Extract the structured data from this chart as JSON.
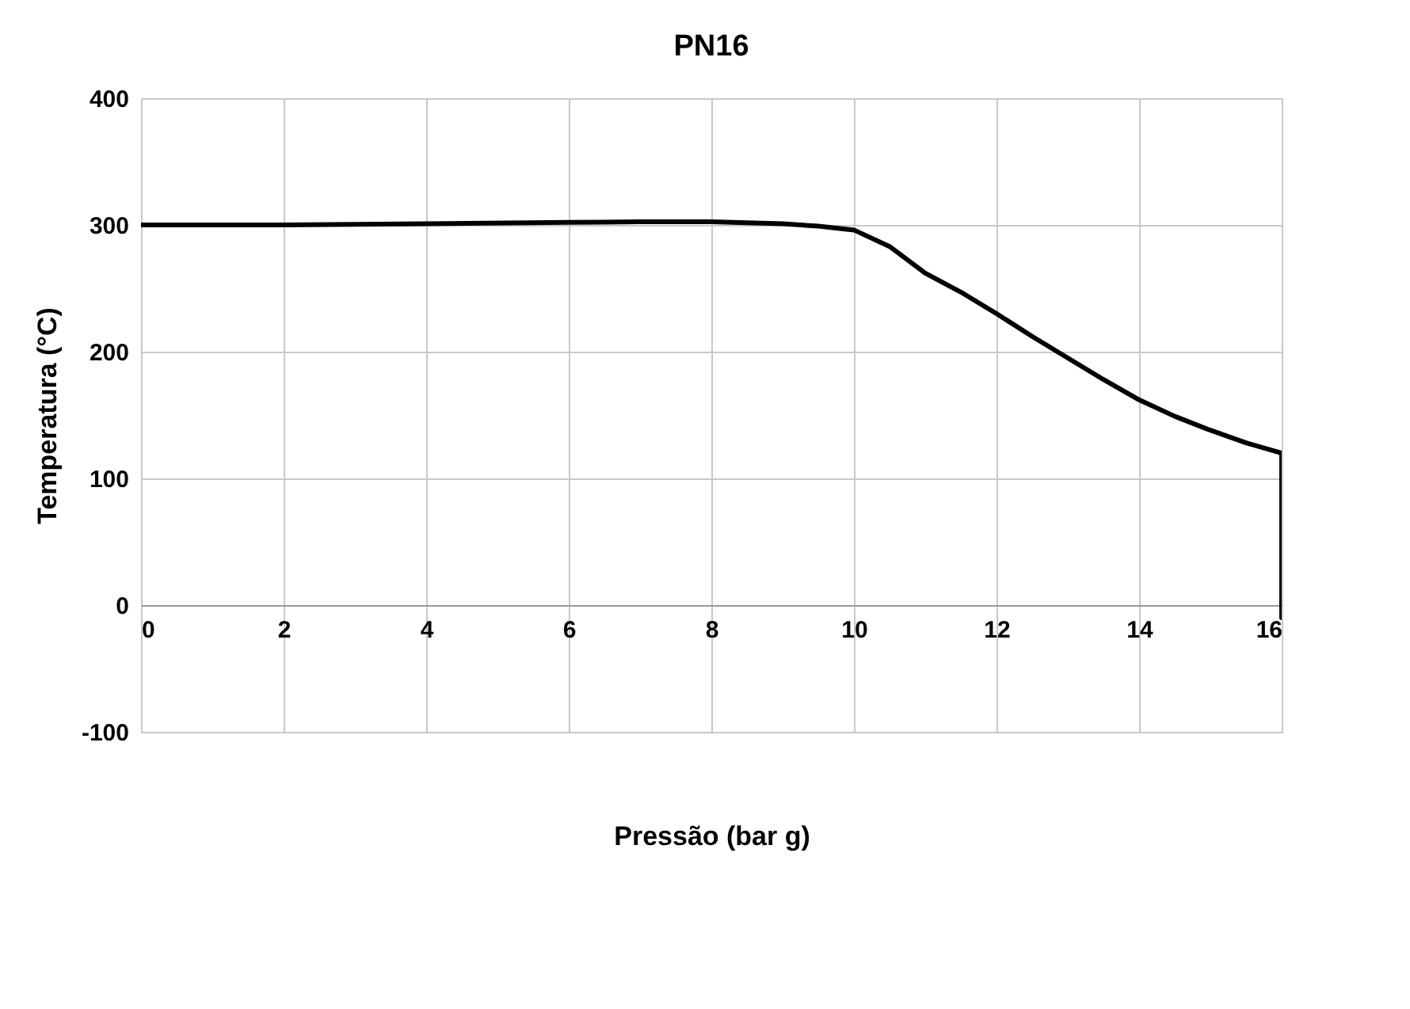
{
  "chart_data": {
    "type": "line",
    "title": "PN16",
    "xlabel": "Pressão (bar g)",
    "ylabel": "Temperatura (°C)",
    "x": [
      0,
      2,
      4,
      6,
      7,
      8,
      9,
      9.5,
      10,
      10.5,
      11,
      11.5,
      12,
      12.5,
      13,
      13.5,
      14,
      14.5,
      15,
      15.5,
      16,
      16
    ],
    "series": [
      {
        "color": "#000000",
        "values": [
          300,
          300,
          301,
          302,
          302.5,
          302.5,
          301,
          299,
          296,
          283,
          262,
          247,
          230,
          212,
          195,
          178,
          162,
          149,
          138,
          128,
          120,
          -10
        ]
      }
    ],
    "xlim": [
      0,
      16
    ],
    "xticks": [
      0,
      2,
      4,
      6,
      8,
      10,
      12,
      14,
      16
    ],
    "ylim": [
      -100,
      400
    ],
    "yticks": [
      -100,
      0,
      100,
      200,
      300,
      400
    ],
    "grid": true,
    "marker": "none",
    "line_style": "solid"
  }
}
